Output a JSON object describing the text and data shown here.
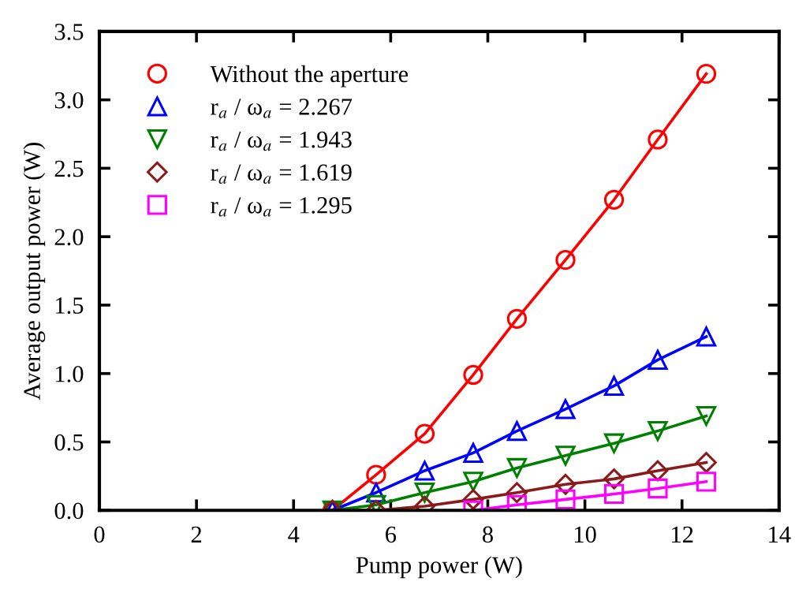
{
  "chart_data": {
    "type": "line",
    "xlabel": "Pump power (W)",
    "ylabel": "Average output power (W)",
    "x": [
      4.8,
      5.7,
      6.7,
      7.7,
      8.6,
      9.6,
      10.6,
      11.5,
      12.5
    ],
    "xlim": [
      0,
      14
    ],
    "xticks": [
      0,
      2,
      4,
      6,
      8,
      10,
      12,
      14
    ],
    "ylim": [
      0,
      3.5
    ],
    "yticks": [
      {
        "value": 0,
        "label": "0.0"
      },
      {
        "value": 0.5,
        "label": "0.5"
      },
      {
        "value": 1,
        "label": "1.0"
      },
      {
        "value": 1.5,
        "label": "1.5"
      },
      {
        "value": 2,
        "label": "2.0"
      },
      {
        "value": 2.5,
        "label": "2.5"
      },
      {
        "value": 3,
        "label": "3.0"
      },
      {
        "value": 3.5,
        "label": "3.5"
      }
    ],
    "grid": false,
    "legend": "top left",
    "series": [
      {
        "name": "Without the aperture",
        "color": "#ff0000",
        "marker": "circle",
        "values": [
          0,
          0.26,
          0.56,
          0.99,
          1.4,
          1.83,
          2.27,
          2.71,
          3.19
        ]
      },
      {
        "name": "r$_{a}$ / ω$_{a}$ = 2.267",
        "color": "#0000ff",
        "marker": "triangle",
        "values": [
          0,
          0.13,
          0.29,
          0.42,
          0.58,
          0.74,
          0.91,
          1.1,
          1.27
        ]
      },
      {
        "name": "r$_{a}$ / ω$_{a}$ = 1.943",
        "color": "#008000",
        "marker": "triangle_down",
        "values": [
          0,
          0.04,
          0.13,
          0.21,
          0.31,
          0.4,
          0.49,
          0.58,
          0.69
        ]
      },
      {
        "name": "r$_{a}$ / ω$_{a}$ = 1.619",
        "color": "#8b1a1a",
        "marker": "diamond",
        "values": [
          0,
          0,
          0.03,
          0.08,
          0.13,
          0.19,
          0.23,
          0.29,
          0.35
        ]
      },
      {
        "name": "r$_{a}$ / ω$_{a}$ = 1.295",
        "color": "#ff00ff",
        "marker": "square",
        "values": [
          null,
          null,
          null,
          0,
          0.04,
          0.08,
          0.12,
          0.16,
          0.21
        ]
      }
    ]
  }
}
